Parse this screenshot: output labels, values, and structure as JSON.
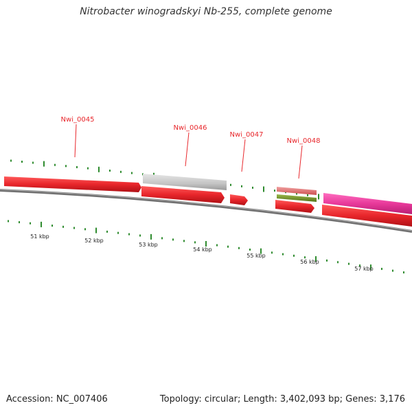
{
  "title": "Nitrobacter winogradskyi Nb-255, complete genome",
  "gene_labels": [
    "Nwi_0045",
    "Nwi_0046",
    "Nwi_0047",
    "Nwi_0048"
  ],
  "kbp_labels": [
    "51 kbp",
    "52 kbp",
    "53 kbp",
    "54 kbp",
    "55 kbp",
    "56 kbp",
    "57 kbp"
  ],
  "footer": {
    "accession": "Accession: NC_007406",
    "summary": "Topology: circular; Length: 3,402,093 bp; Genes: 3,176"
  },
  "colors": {
    "gene_red": "#e8262b",
    "gene_grey": "#c8c8c8",
    "gene_pink": "#e8399a",
    "gene_salmon": "#e07070",
    "gene_olive": "#6b8e23",
    "tick_green": "#2e8b2e",
    "backbone": "#808080"
  }
}
